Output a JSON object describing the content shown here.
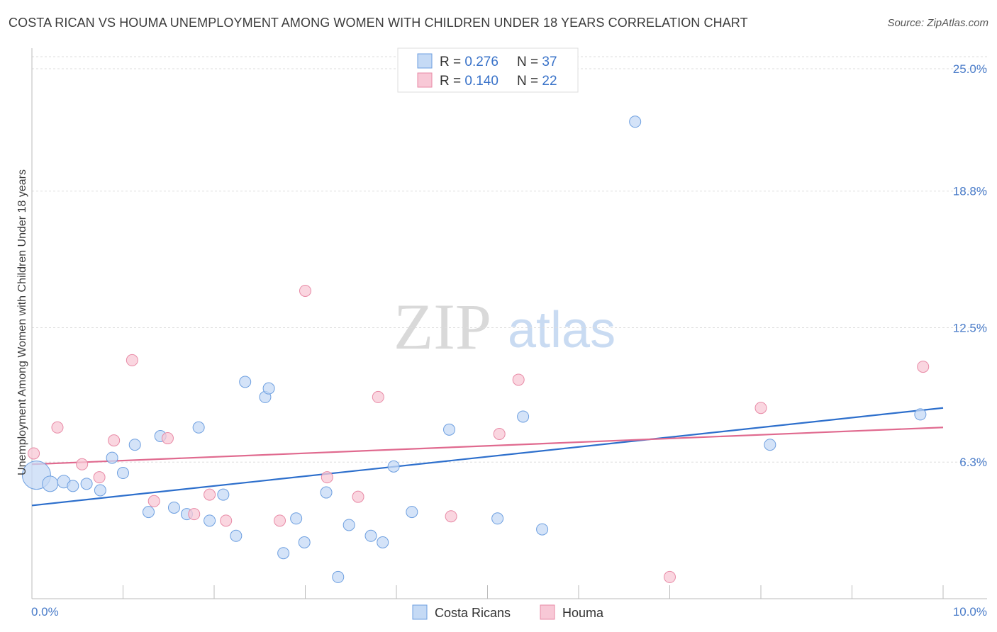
{
  "title": "COSTA RICAN VS HOUMA UNEMPLOYMENT AMONG WOMEN WITH CHILDREN UNDER 18 YEARS CORRELATION CHART",
  "source": "Source: ZipAtlas.com",
  "watermark": {
    "zip": "ZIP",
    "atlas": "atlas"
  },
  "legend_top": [
    {
      "r_label": "R = ",
      "r_value": "0.276",
      "n_label": "N = ",
      "n_value": "37"
    },
    {
      "r_label": "R = ",
      "r_value": "0.140",
      "n_label": "N = ",
      "n_value": "22"
    }
  ],
  "chart_data": {
    "type": "scatter",
    "title": "COSTA RICAN VS HOUMA UNEMPLOYMENT AMONG WOMEN WITH CHILDREN UNDER 18 YEARS CORRELATION CHART",
    "ylabel": "Unemployment Among Women with Children Under 18 years",
    "xlabel": "",
    "xlim": [
      0,
      10
    ],
    "ylim": [
      0,
      25
    ],
    "x_tick_labels": [
      {
        "value": 0,
        "label": "0.0%"
      },
      {
        "value": 10,
        "label": "10.0%"
      }
    ],
    "y_tick_labels": [
      {
        "value": 6.3,
        "label": "6.3%"
      },
      {
        "value": 12.5,
        "label": "12.5%"
      },
      {
        "value": 18.8,
        "label": "18.8%"
      },
      {
        "value": 25.0,
        "label": "25.0%"
      }
    ],
    "grid": true,
    "legend_position": "bottom",
    "series": [
      {
        "name": "Costa Ricans",
        "color": "#6d9fe0",
        "fill": "#c5daf5",
        "line_color": "#2d6fcc",
        "trend": [
          [
            0,
            4.3
          ],
          [
            10,
            8.8
          ]
        ],
        "points": [
          [
            0.05,
            5.7,
            20
          ],
          [
            0.2,
            5.3,
            11
          ],
          [
            0.35,
            5.4,
            9
          ],
          [
            0.45,
            5.2,
            8
          ],
          [
            0.6,
            5.3,
            8
          ],
          [
            0.75,
            5.0,
            8
          ],
          [
            0.88,
            6.5,
            8
          ],
          [
            1.0,
            5.8,
            8
          ],
          [
            1.13,
            7.1,
            8
          ],
          [
            1.28,
            4.0,
            8
          ],
          [
            1.41,
            7.5,
            8
          ],
          [
            1.56,
            4.2,
            8
          ],
          [
            1.7,
            3.9,
            8
          ],
          [
            1.83,
            7.9,
            8
          ],
          [
            1.95,
            3.6,
            8
          ],
          [
            2.1,
            4.8,
            8
          ],
          [
            2.24,
            2.9,
            8
          ],
          [
            2.34,
            10.0,
            8
          ],
          [
            2.56,
            9.3,
            8
          ],
          [
            2.6,
            9.7,
            8
          ],
          [
            2.76,
            2.1,
            8
          ],
          [
            2.9,
            3.7,
            8
          ],
          [
            2.99,
            2.6,
            8
          ],
          [
            3.23,
            4.9,
            8
          ],
          [
            3.36,
            1.0,
            8
          ],
          [
            3.48,
            3.4,
            8
          ],
          [
            3.72,
            2.9,
            8
          ],
          [
            3.85,
            2.6,
            8
          ],
          [
            3.97,
            6.1,
            8
          ],
          [
            4.17,
            4.0,
            8
          ],
          [
            4.58,
            7.8,
            8
          ],
          [
            5.11,
            3.7,
            8
          ],
          [
            5.39,
            8.4,
            8
          ],
          [
            5.6,
            3.2,
            8
          ],
          [
            6.62,
            22.0,
            8
          ],
          [
            8.1,
            7.1,
            8
          ],
          [
            9.75,
            8.5,
            8
          ]
        ]
      },
      {
        "name": "Houma",
        "color": "#e88aa6",
        "fill": "#f8c8d6",
        "line_color": "#e06a8f",
        "trend": [
          [
            0,
            6.2
          ],
          [
            10,
            7.9
          ]
        ],
        "points": [
          [
            0.02,
            6.7,
            8
          ],
          [
            0.28,
            7.9,
            8
          ],
          [
            0.55,
            6.2,
            8
          ],
          [
            0.74,
            5.6,
            8
          ],
          [
            0.9,
            7.3,
            8
          ],
          [
            1.1,
            11.0,
            8
          ],
          [
            1.34,
            4.5,
            8
          ],
          [
            1.49,
            7.4,
            8
          ],
          [
            1.78,
            3.9,
            8
          ],
          [
            1.95,
            4.8,
            8
          ],
          [
            2.13,
            3.6,
            8
          ],
          [
            2.72,
            3.6,
            8
          ],
          [
            3.0,
            14.2,
            8
          ],
          [
            3.24,
            5.6,
            8
          ],
          [
            3.58,
            4.7,
            8
          ],
          [
            3.8,
            9.3,
            8
          ],
          [
            4.6,
            3.8,
            8
          ],
          [
            5.13,
            7.6,
            8
          ],
          [
            5.34,
            10.1,
            8
          ],
          [
            7.0,
            1.0,
            8
          ],
          [
            8.0,
            8.8,
            8
          ],
          [
            9.78,
            10.7,
            8
          ]
        ]
      }
    ]
  }
}
